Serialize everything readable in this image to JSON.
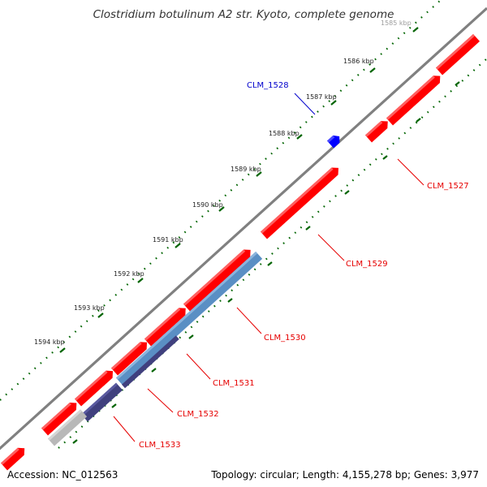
{
  "title": "Clostridium botulinum A2 str. Kyoto, complete genome",
  "footer": {
    "accession": "Accession: NC_012563",
    "summary": "Topology: circular; Length: 4,155,278 bp; Genes: 3,977"
  },
  "scale": {
    "unit": "kbp",
    "ticks": [
      "1585 kbp",
      "1586 kbp",
      "1587 kbp",
      "1588 kbp",
      "1589 kbp",
      "1590 kbp",
      "1591 kbp",
      "1592 kbp",
      "1593 kbp",
      "1594 kbp"
    ]
  },
  "genes": [
    {
      "label": "CLM_1527",
      "color": "#e60000"
    },
    {
      "label": "CLM_1528",
      "color": "#0000cc"
    },
    {
      "label": "CLM_1529",
      "color": "#e60000"
    },
    {
      "label": "CLM_1530",
      "color": "#e60000"
    },
    {
      "label": "CLM_1531",
      "color": "#e60000"
    },
    {
      "label": "CLM_1532",
      "color": "#e60000"
    },
    {
      "label": "CLM_1533",
      "color": "#e60000"
    }
  ],
  "colors": {
    "backbone": "#808080",
    "forward_gene": "#ff0000",
    "reverse_gene_label": "#e60000",
    "small_gene": "#0000ff",
    "track_light_blue": "#5a8fc4",
    "track_dark_blue": "#40407e",
    "track_gray": "#b8b8b8",
    "tick": "#006400"
  }
}
